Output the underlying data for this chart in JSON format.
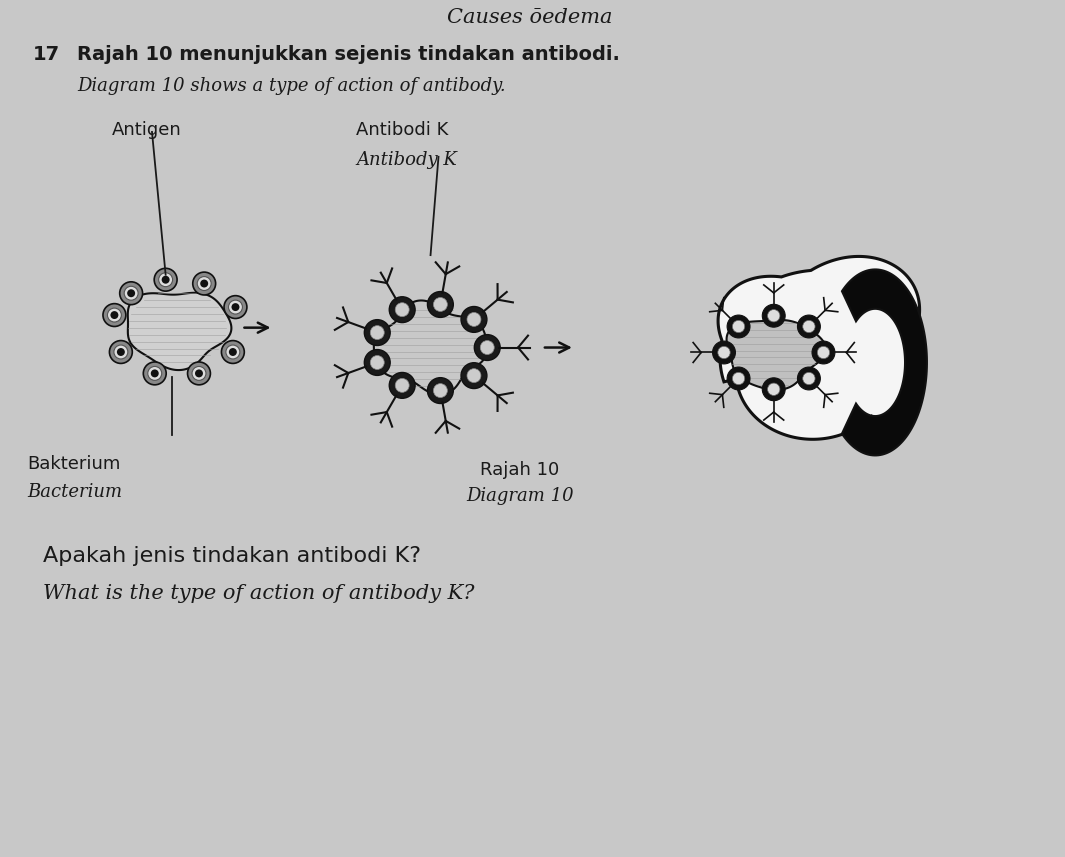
{
  "background_color": "#c8c8c8",
  "title_top": "Causes ōedema",
  "question_number": "17",
  "line1_malay": "Rajah 10 menunjukkan sejenis tindakan antibodi.",
  "line1_english": "Diagram 10 shows a type of action of antibody.",
  "label_antigen": "Antigen",
  "label_antibodi_k": "Antibodi K",
  "label_antibody_k": "Antibody K",
  "label_bakterium": "Bakterium",
  "label_bacterium": "Bacterium",
  "diagram_caption1": "Rajah 10",
  "diagram_caption2": "Diagram 10",
  "question_malay": "Apakah jenis tindakan antibodi K?",
  "question_english": "What is the type of action of antibody K?",
  "text_color": "#1a1a1a",
  "diagram_color": "#111111",
  "figure_width": 10.65,
  "figure_height": 8.57
}
